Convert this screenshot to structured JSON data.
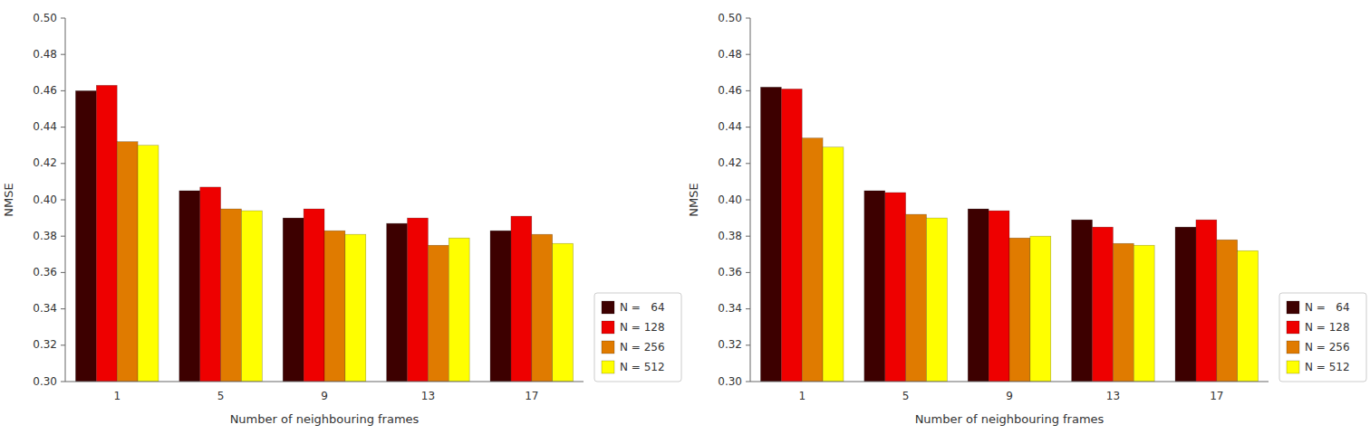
{
  "chart_data": [
    {
      "type": "bar",
      "xlabel": "Number of neighbouring frames",
      "ylabel": "NMSE",
      "categories": [
        "1",
        "5",
        "9",
        "13",
        "17"
      ],
      "series": [
        {
          "name": "N =   64",
          "color": "#3d0000",
          "values": [
            0.46,
            0.405,
            0.39,
            0.387,
            0.383
          ]
        },
        {
          "name": "N = 128",
          "color": "#ee0000",
          "values": [
            0.463,
            0.407,
            0.395,
            0.39,
            0.391
          ]
        },
        {
          "name": "N = 256",
          "color": "#e07b00",
          "values": [
            0.432,
            0.395,
            0.383,
            0.375,
            0.381
          ]
        },
        {
          "name": "N = 512",
          "color": "#ffff00",
          "values": [
            0.43,
            0.394,
            0.381,
            0.379,
            0.376
          ]
        }
      ],
      "ylim": [
        0.3,
        0.5
      ],
      "yticks": [
        {
          "value": 0.3,
          "label": "0.30"
        },
        0.32,
        0.34,
        0.36,
        0.38,
        {
          "value": 0.4,
          "label": "0.40"
        },
        0.42,
        0.44,
        0.46,
        0.48,
        {
          "value": 0.5,
          "label": "0.50"
        }
      ],
      "grid": false,
      "legend": "lower right"
    },
    {
      "type": "bar",
      "xlabel": "Number of neighbouring frames",
      "ylabel": "NMSE",
      "categories": [
        "1",
        "5",
        "9",
        "13",
        "17"
      ],
      "series": [
        {
          "name": "N =   64",
          "color": "#3d0000",
          "values": [
            0.462,
            0.405,
            0.395,
            0.389,
            0.385
          ]
        },
        {
          "name": "N = 128",
          "color": "#ee0000",
          "values": [
            0.461,
            0.404,
            0.394,
            0.385,
            0.389
          ]
        },
        {
          "name": "N = 256",
          "color": "#e07b00",
          "values": [
            0.434,
            0.392,
            0.379,
            0.376,
            0.378
          ]
        },
        {
          "name": "N = 512",
          "color": "#ffff00",
          "values": [
            0.429,
            0.39,
            0.38,
            0.375,
            0.372
          ]
        }
      ],
      "ylim": [
        0.3,
        0.5
      ],
      "yticks": [
        {
          "value": 0.3,
          "label": "0.30"
        },
        0.32,
        0.34,
        0.36,
        0.38,
        {
          "value": 0.4,
          "label": "0.40"
        },
        0.42,
        0.44,
        0.46,
        0.48,
        {
          "value": 0.5,
          "label": "0.50"
        }
      ],
      "grid": false,
      "legend": "lower right"
    }
  ]
}
